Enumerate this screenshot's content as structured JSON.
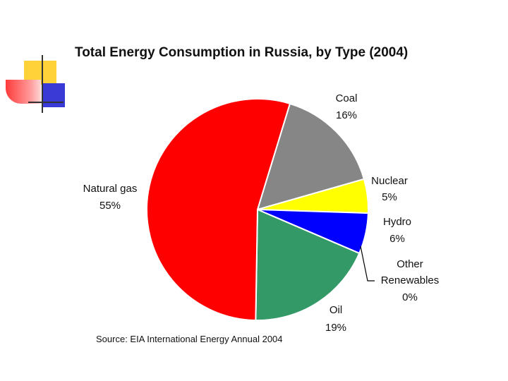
{
  "chart_data": {
    "type": "pie",
    "title": "Total Energy Consumption in Russia, by Type (2004)",
    "source": "Source: EIA International Energy Annual 2004",
    "slices": [
      {
        "label": "Coal",
        "value": 16,
        "value_label": "16%",
        "color": "#868686"
      },
      {
        "label": "Nuclear",
        "value": 5,
        "value_label": "5%",
        "color": "#ffff00"
      },
      {
        "label": "Hydro",
        "value": 6,
        "value_label": "6%",
        "color": "#0000ff"
      },
      {
        "label": "Other Renewables",
        "label_lines": [
          "Other",
          "Renewables"
        ],
        "value": 0,
        "value_label": "0%",
        "color": "#000000"
      },
      {
        "label": "Oil",
        "value": 19,
        "value_label": "19%",
        "color": "#339966"
      },
      {
        "label": "Natural gas",
        "value": 55,
        "value_label": "55%",
        "color": "#ff0000"
      }
    ]
  }
}
